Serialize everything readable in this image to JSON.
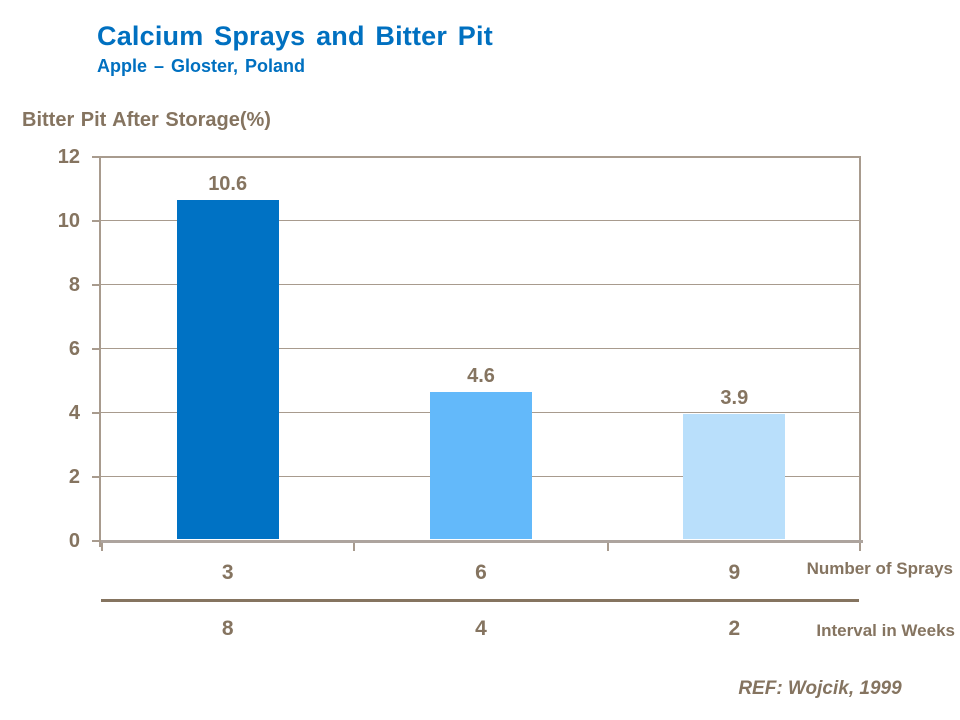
{
  "slide": {
    "title": "Calcium Sprays and Bitter Pit",
    "subtitle": "Apple – Gloster, Poland",
    "reference": "REF: Wojcik, 1999"
  },
  "chart_data": {
    "type": "bar",
    "title": "Bitter Pit After Storage(%)",
    "ylabel": "Bitter Pit After Storage(%)",
    "ylim": [
      0,
      12
    ],
    "yticks": [
      0,
      2,
      4,
      6,
      8,
      10,
      12
    ],
    "grid": true,
    "legend": false,
    "values": [
      10.6,
      4.6,
      3.9
    ],
    "value_labels": [
      "10.6",
      "4.6",
      "3.9"
    ],
    "bar_colors": [
      "#0072C4",
      "#63B9FA",
      "#B9DFFB"
    ],
    "categories_rows": [
      {
        "label": "Number of Sprays",
        "values": [
          "3",
          "6",
          "9"
        ]
      },
      {
        "label": "Interval in Weeks",
        "values": [
          "8",
          "4",
          "2"
        ]
      }
    ]
  },
  "colors": {
    "title_blue": "#0070C0",
    "text_brown": "#857460",
    "grid_line": "#A89B8E",
    "axis_gray": "#ADA49E",
    "separator_brown": "#857460"
  }
}
